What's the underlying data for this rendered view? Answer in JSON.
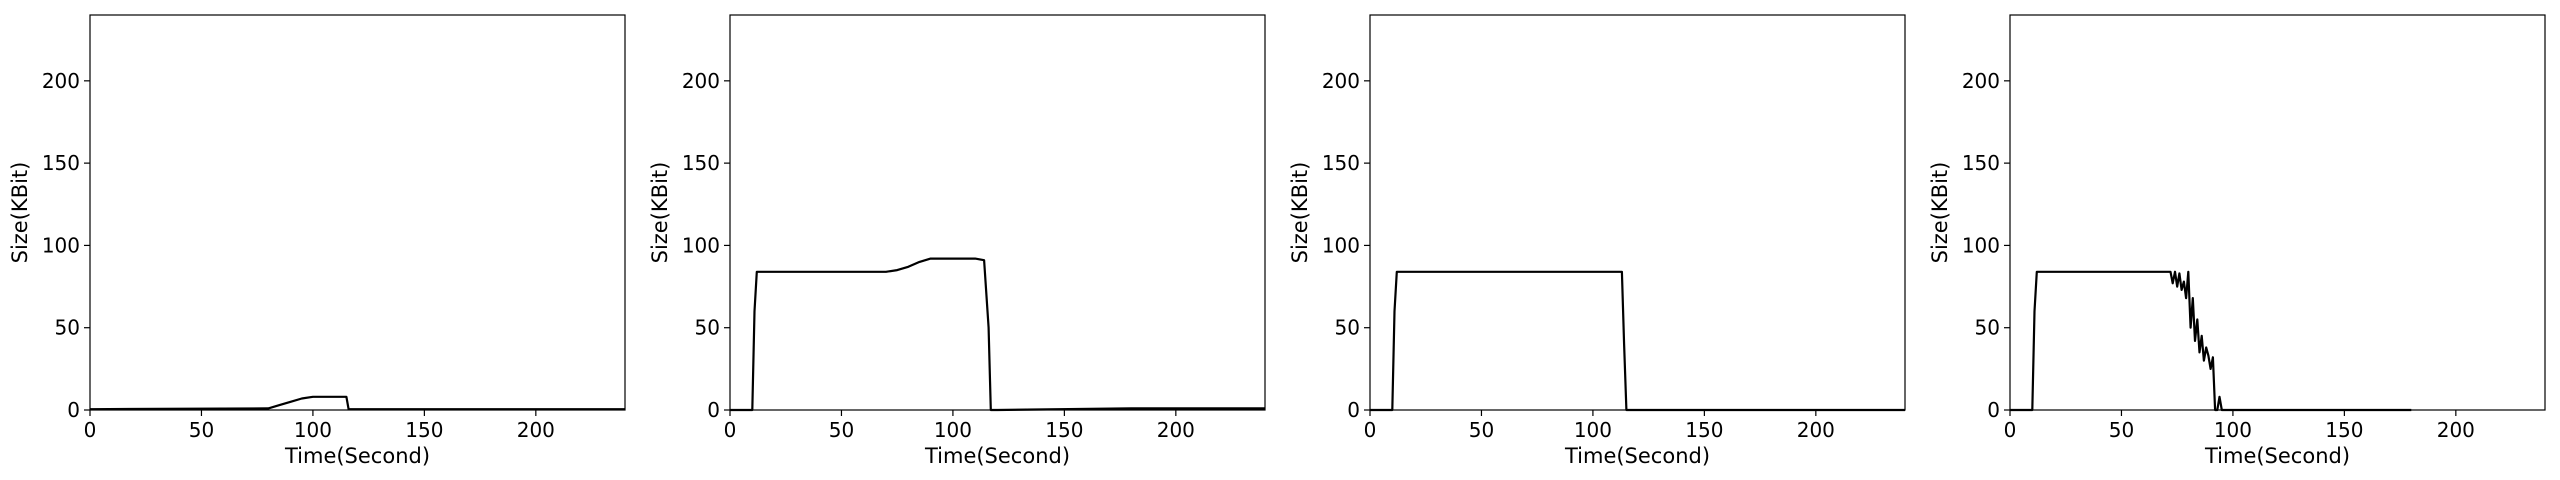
{
  "chart_data": [
    {
      "type": "line",
      "xlabel": "Time(Second)",
      "ylabel": "Size(KBit)",
      "xlim": [
        0,
        240
      ],
      "ylim": [
        0,
        240
      ],
      "xticks": [
        0,
        50,
        100,
        150,
        200
      ],
      "yticks": [
        0,
        50,
        100,
        150,
        200
      ],
      "grid": false,
      "line_color": "#000000",
      "series": [
        {
          "x": [
            0,
            80,
            85,
            90,
            95,
            100,
            105,
            110,
            115,
            116,
            120,
            180,
            240
          ],
          "y": [
            0.5,
            1,
            3,
            5,
            7,
            8,
            8,
            8,
            8,
            0.5,
            0.5,
            0.5,
            0.5
          ]
        }
      ]
    },
    {
      "type": "line",
      "xlabel": "Time(Second)",
      "ylabel": "Size(KBit)",
      "xlim": [
        0,
        240
      ],
      "ylim": [
        0,
        240
      ],
      "xticks": [
        0,
        50,
        100,
        150,
        200
      ],
      "yticks": [
        0,
        50,
        100,
        150,
        200
      ],
      "grid": false,
      "line_color": "#000000",
      "series": [
        {
          "x": [
            0,
            10,
            11,
            12,
            20,
            40,
            60,
            70,
            75,
            80,
            85,
            90,
            100,
            110,
            114,
            116,
            117,
            120,
            180,
            240
          ],
          "y": [
            0,
            0,
            60,
            84,
            84,
            84,
            84,
            84,
            85,
            87,
            90,
            92,
            92,
            92,
            91,
            50,
            0,
            0,
            1,
            1
          ]
        }
      ]
    },
    {
      "type": "line",
      "xlabel": "Time(Second)",
      "ylabel": "Size(KBit)",
      "xlim": [
        0,
        240
      ],
      "ylim": [
        0,
        240
      ],
      "xticks": [
        0,
        50,
        100,
        150,
        200
      ],
      "yticks": [
        0,
        50,
        100,
        150,
        200
      ],
      "grid": false,
      "line_color": "#000000",
      "series": [
        {
          "x": [
            0,
            10,
            11,
            12,
            20,
            50,
            80,
            100,
            110,
            113,
            114,
            115,
            120,
            180,
            240
          ],
          "y": [
            0,
            0,
            60,
            84,
            84,
            84,
            84,
            84,
            84,
            84,
            40,
            0,
            0,
            0,
            0
          ]
        }
      ]
    },
    {
      "type": "line",
      "xlabel": "Time(Second)",
      "ylabel": "Size(KBit)",
      "xlim": [
        0,
        240
      ],
      "ylim": [
        0,
        240
      ],
      "xticks": [
        0,
        50,
        100,
        150,
        200
      ],
      "yticks": [
        0,
        50,
        100,
        150,
        200
      ],
      "grid": false,
      "line_color": "#000000",
      "series": [
        {
          "x": [
            0,
            10,
            11,
            12,
            20,
            40,
            60,
            70,
            72,
            73,
            74,
            75,
            76,
            77,
            78,
            79,
            80,
            81,
            82,
            83,
            84,
            85,
            86,
            87,
            88,
            89,
            90,
            91,
            92,
            93,
            94,
            95,
            96,
            100,
            140,
            180
          ],
          "y": [
            0,
            0,
            60,
            84,
            84,
            84,
            84,
            84,
            84,
            77,
            84,
            75,
            83,
            73,
            78,
            68,
            84,
            50,
            68,
            42,
            55,
            35,
            45,
            30,
            38,
            33,
            25,
            32,
            0,
            0,
            8,
            0,
            0,
            0,
            0,
            0
          ]
        }
      ]
    }
  ]
}
